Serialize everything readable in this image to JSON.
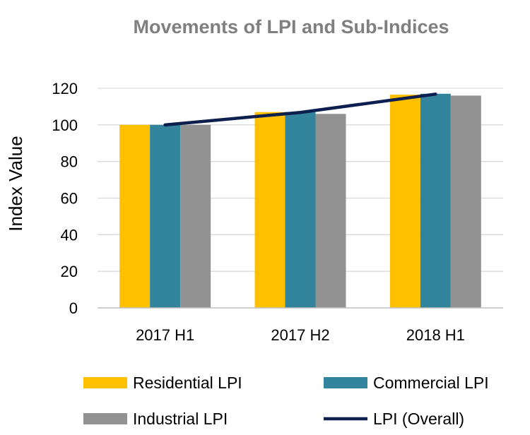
{
  "chart_data": {
    "type": "bar",
    "title": "Movements of LPI and Sub-Indices",
    "xlabel": "",
    "ylabel": "Index Value",
    "ylim": [
      0,
      120
    ],
    "yticks": [
      0,
      20,
      40,
      60,
      80,
      100,
      120
    ],
    "grid": true,
    "legend_position": "bottom",
    "categories": [
      "2017 H1",
      "2017 H2",
      "2018 H1"
    ],
    "series": [
      {
        "name": "Residential LPI",
        "kind": "bar",
        "color": "#FFC000",
        "values": [
          100.0,
          107.0,
          116.5
        ]
      },
      {
        "name": "Commercial LPI",
        "kind": "bar",
        "color": "#31849B",
        "values": [
          100.0,
          107.0,
          117.0
        ]
      },
      {
        "name": "Industrial LPI",
        "kind": "bar",
        "color": "#929292",
        "values": [
          100.0,
          106.0,
          116.0
        ]
      },
      {
        "name": "LPI (Overall)",
        "kind": "line",
        "color": "#0C1F4F",
        "values": [
          100.0,
          106.8,
          116.8
        ]
      }
    ]
  }
}
